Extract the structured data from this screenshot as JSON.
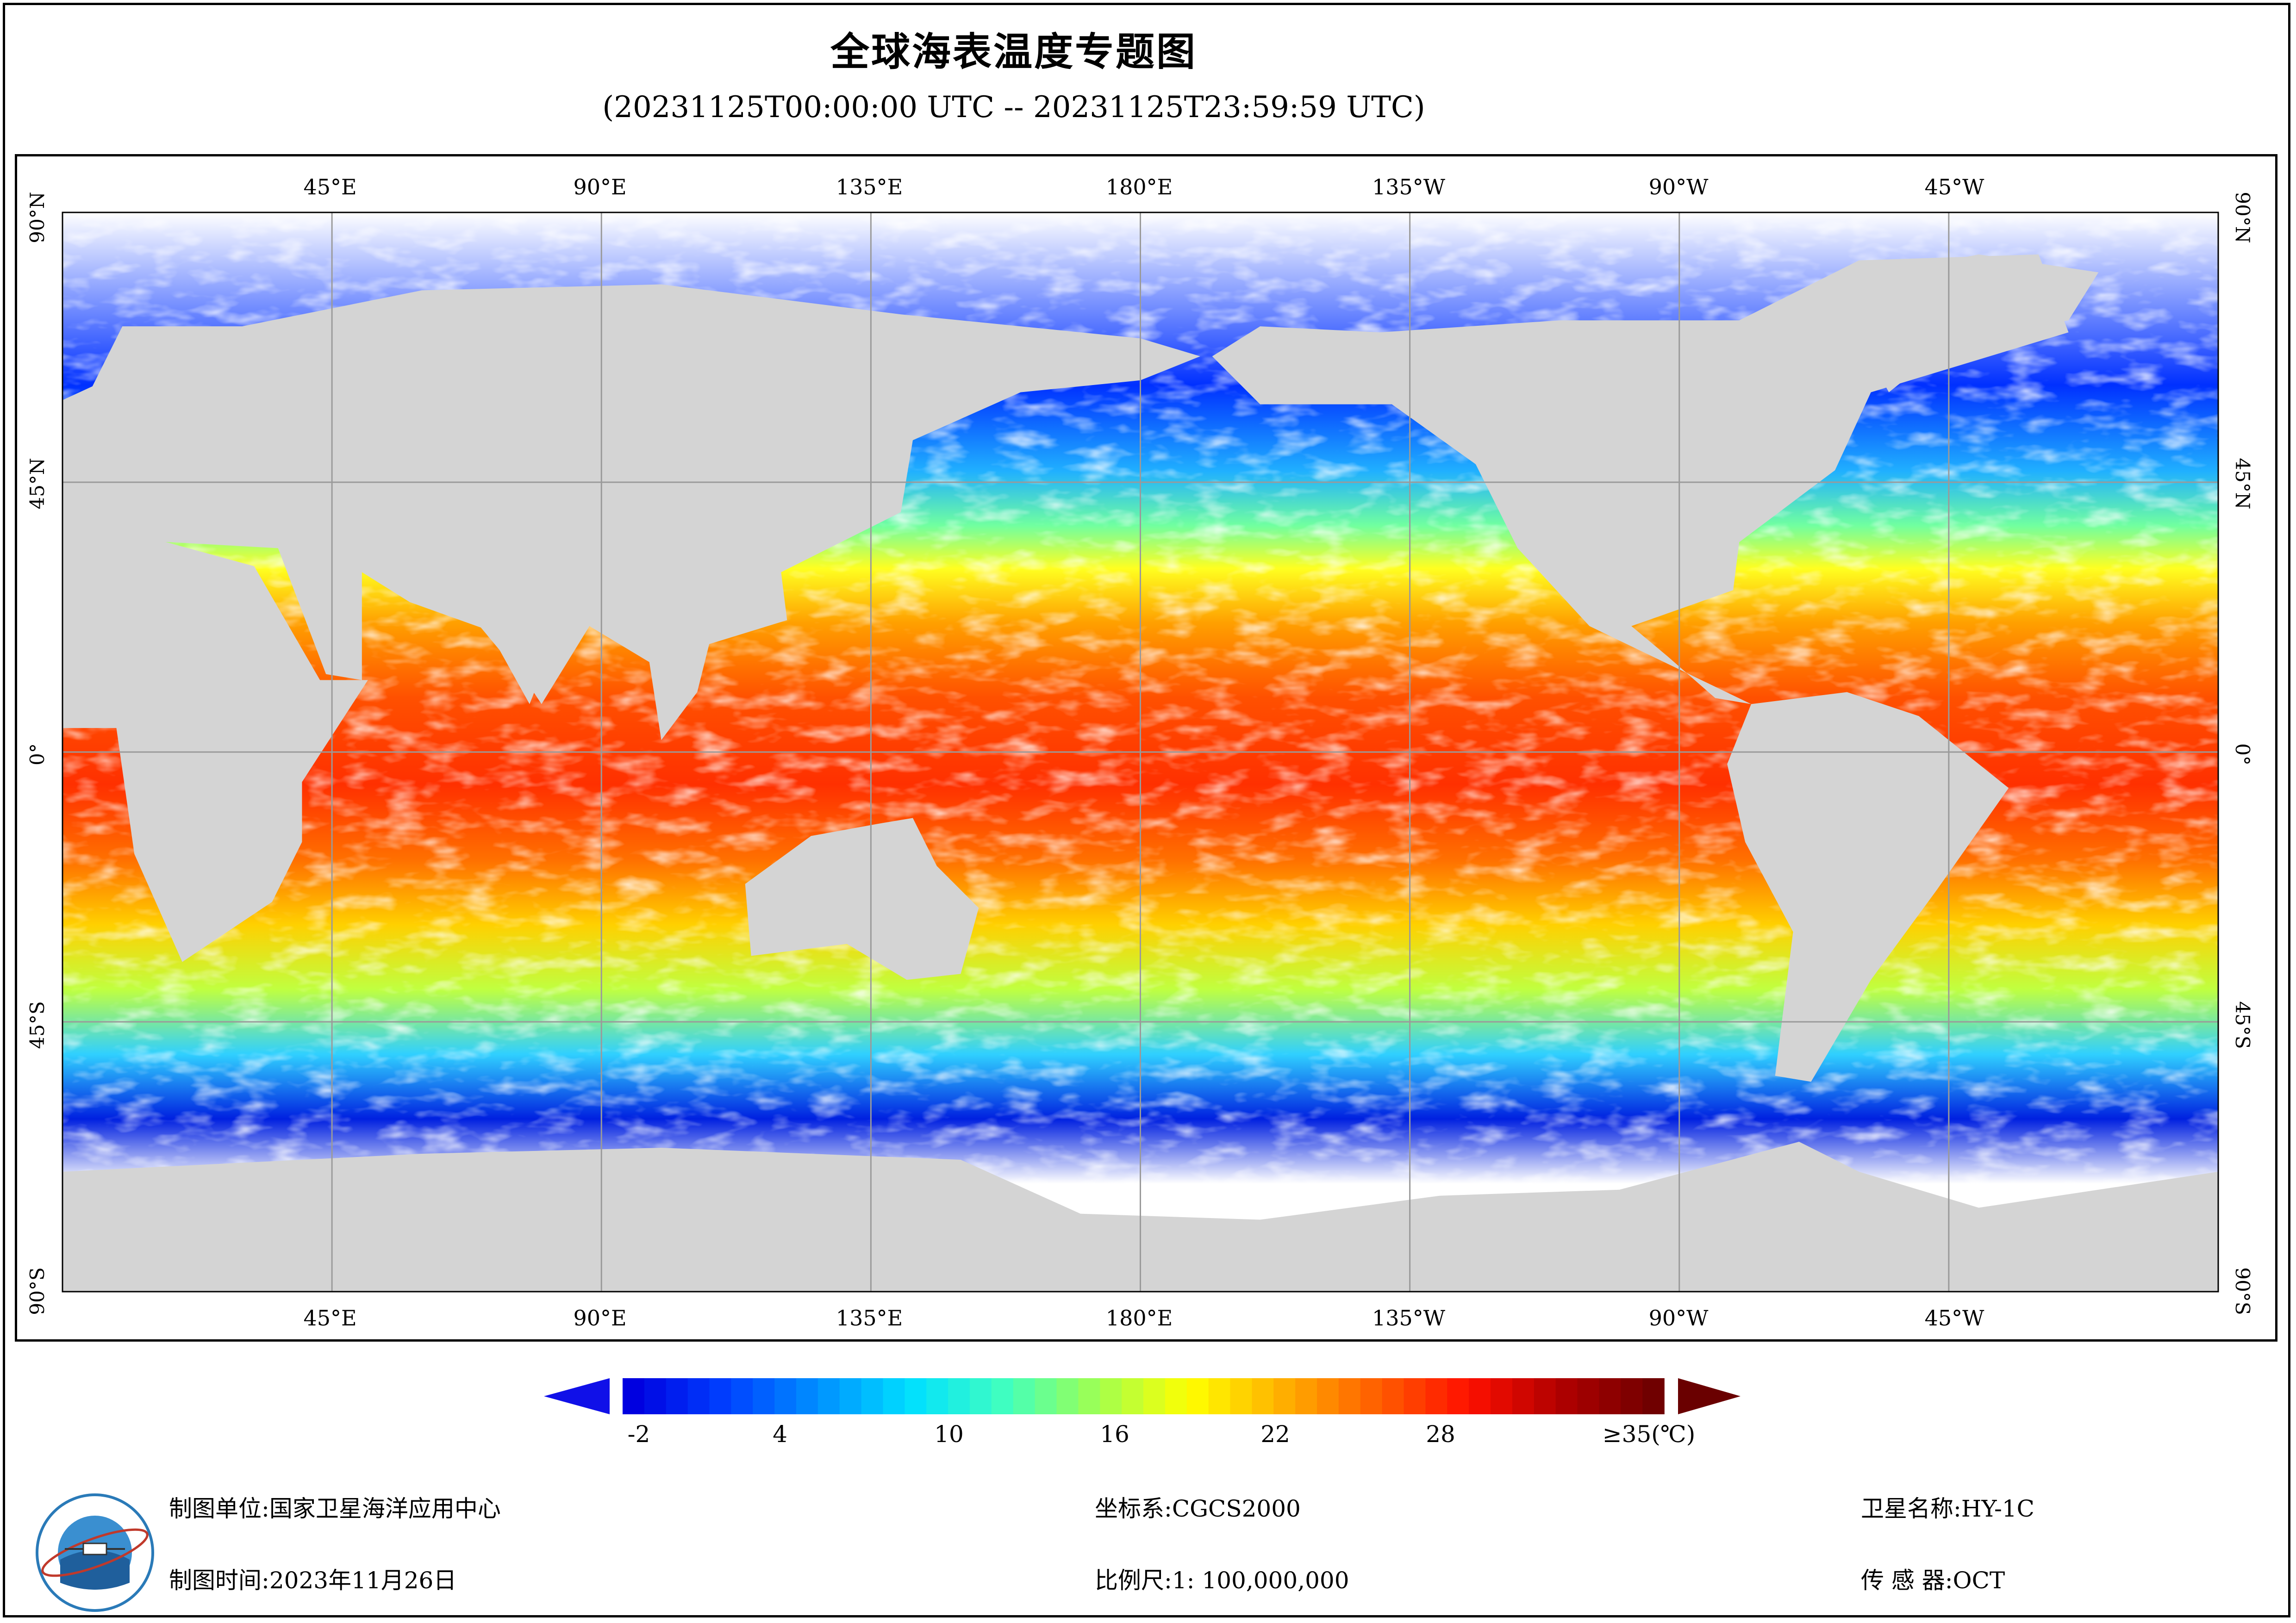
{
  "title": "全球海表温度专题图",
  "subtitle": "(20231125T00:00:00 UTC -- 20231125T23:59:59 UTC)",
  "map": {
    "top_lon_labels": [
      "45°E",
      "90°E",
      "135°E",
      "180°E",
      "135°W",
      "90°W",
      "45°W"
    ],
    "bottom_lon_labels": [
      "45°E",
      "90°E",
      "135°E",
      "180°E",
      "135°W",
      "90°W",
      "45°W"
    ],
    "lat_labels": [
      "90°N",
      "45°N",
      "0°",
      "45°S",
      "90°S"
    ],
    "colors": {
      "land": "#d4d4d4",
      "cloud_ice": "#ffffff",
      "grid": "#9a9a9a"
    }
  },
  "colorbar": {
    "ticks": [
      "-2",
      "4",
      "10",
      "16",
      "22",
      "28"
    ],
    "max_label": "≥35(℃)",
    "colors": [
      "#0000e0",
      "#0040ff",
      "#0090ff",
      "#00e0ff",
      "#40ffc0",
      "#a0ff50",
      "#ffff00",
      "#ffb000",
      "#ff6000",
      "#ff1000",
      "#b00000",
      "#700000"
    ]
  },
  "footer": {
    "unit_label": "制图单位:",
    "unit_value": "国家卫星海洋应用中心",
    "time_label": "制图时间:",
    "time_value": "2023年11月26日",
    "crs_label": "坐标系:",
    "crs_value": "CGCS2000",
    "scale_label": "比例尺:",
    "scale_value": "1: 100,000,000",
    "satellite_label": "卫星名称:",
    "satellite_value": "HY-1C",
    "sensor_label": "传 感 器:",
    "sensor_value": "OCT"
  }
}
